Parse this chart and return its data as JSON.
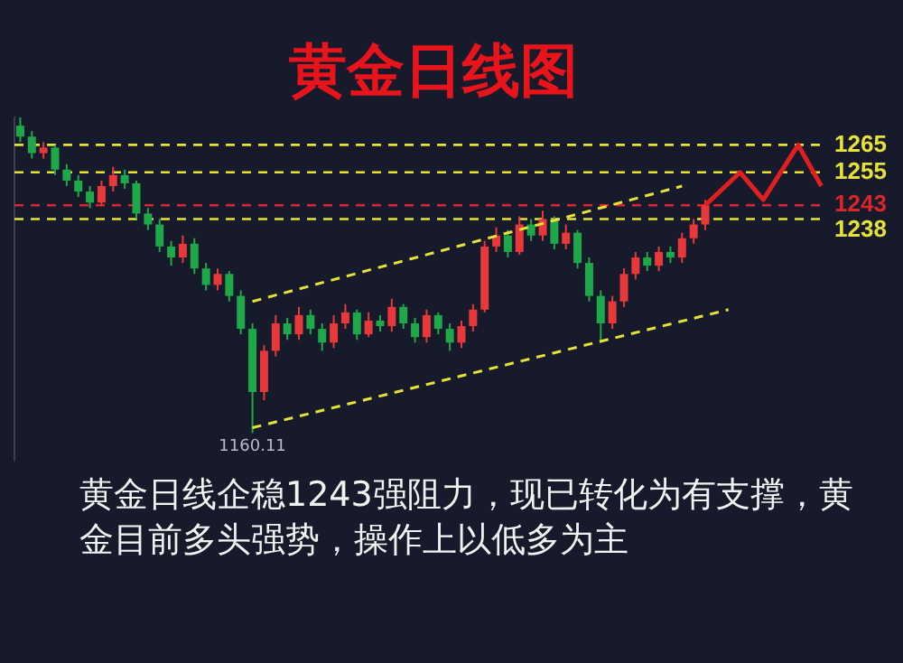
{
  "chart_data": {
    "type": "candlestick",
    "title": "黄金日线图",
    "annotations": [
      "黄金日线企稳1243强阻力，现已转化为有支撑，黄金目前多头强势，操作上以低多为主",
      {
        "text": "1160.11",
        "y": 1160.11
      }
    ],
    "categories": [
      null,
      null,
      null,
      null,
      null,
      null,
      null,
      null,
      null,
      null,
      null,
      null,
      null,
      null,
      null,
      null,
      null,
      null,
      null,
      null,
      null,
      null,
      null,
      null,
      null,
      null,
      null,
      null,
      null,
      null,
      null,
      null,
      null,
      null,
      null,
      null,
      null,
      null,
      null,
      null,
      null,
      null,
      null,
      null,
      null,
      null,
      null,
      null,
      null,
      null,
      null,
      null,
      null,
      null,
      null,
      null,
      null,
      null,
      null,
      null,
      null,
      null,
      null,
      null,
      null,
      null,
      null,
      null,
      null,
      null
    ],
    "ylim": [
      1150,
      1275
    ],
    "tick_labels": false,
    "legend": false,
    "series": [
      {
        "ohlc": [
          [
            1272,
            1275,
            1266,
            1268
          ],
          [
            1268,
            1270,
            1260,
            1262
          ],
          [
            1262,
            1266,
            1260,
            1264
          ],
          [
            1264,
            1265,
            1254,
            1256
          ],
          [
            1256,
            1258,
            1250,
            1252
          ],
          [
            1252,
            1254,
            1246,
            1248
          ],
          [
            1248,
            1250,
            1242,
            1244
          ],
          [
            1244,
            1252,
            1243,
            1250
          ],
          [
            1250,
            1257,
            1248,
            1254
          ],
          [
            1254,
            1256,
            1249,
            1251
          ],
          [
            1251,
            1252,
            1238,
            1240
          ],
          [
            1240,
            1242,
            1234,
            1236
          ],
          [
            1236,
            1238,
            1226,
            1228
          ],
          [
            1228,
            1230,
            1221,
            1224
          ],
          [
            1224,
            1232,
            1222,
            1229
          ],
          [
            1229,
            1231,
            1218,
            1220
          ],
          [
            1220,
            1222,
            1212,
            1214
          ],
          [
            1214,
            1220,
            1212,
            1218
          ],
          [
            1218,
            1219,
            1208,
            1210
          ],
          [
            1210,
            1212,
            1196,
            1198
          ],
          [
            1198,
            1200,
            1160.11,
            1175
          ],
          [
            1175,
            1192,
            1172,
            1190
          ],
          [
            1190,
            1203,
            1188,
            1200
          ],
          [
            1200,
            1202,
            1194,
            1196
          ],
          [
            1196,
            1206,
            1194,
            1203
          ],
          [
            1203,
            1205,
            1196,
            1198
          ],
          [
            1198,
            1200,
            1190,
            1193
          ],
          [
            1193,
            1203,
            1191,
            1200
          ],
          [
            1200,
            1207,
            1198,
            1204
          ],
          [
            1204,
            1205,
            1194,
            1196
          ],
          [
            1196,
            1204,
            1195,
            1201
          ],
          [
            1201,
            1203,
            1197,
            1199
          ],
          [
            1199,
            1209,
            1197,
            1206
          ],
          [
            1206,
            1207,
            1198,
            1200
          ],
          [
            1200,
            1202,
            1193,
            1195
          ],
          [
            1195,
            1205,
            1193,
            1203
          ],
          [
            1203,
            1204,
            1196,
            1198
          ],
          [
            1198,
            1200,
            1190,
            1193
          ],
          [
            1193,
            1201,
            1191,
            1199
          ],
          [
            1199,
            1207,
            1197,
            1205
          ],
          [
            1205,
            1230,
            1204,
            1228
          ],
          [
            1228,
            1235,
            1226,
            1232
          ],
          [
            1232,
            1234,
            1224,
            1226
          ],
          [
            1226,
            1239,
            1225,
            1236
          ],
          [
            1236,
            1238,
            1230,
            1232
          ],
          [
            1232,
            1241,
            1230,
            1238
          ],
          [
            1238,
            1239,
            1227,
            1229
          ],
          [
            1229,
            1236,
            1227,
            1233
          ],
          [
            1233,
            1234,
            1220,
            1222
          ],
          [
            1222,
            1224,
            1208,
            1210
          ],
          [
            1210,
            1212,
            1193,
            1200
          ],
          [
            1200,
            1210,
            1198,
            1208
          ],
          [
            1208,
            1220,
            1206,
            1218
          ],
          [
            1218,
            1226,
            1216,
            1224
          ],
          [
            1224,
            1226,
            1219,
            1221
          ],
          [
            1221,
            1228,
            1219,
            1226
          ],
          [
            1226,
            1228,
            1222,
            1224
          ],
          [
            1224,
            1233,
            1222,
            1231
          ],
          [
            1231,
            1238,
            1229,
            1236
          ],
          [
            1236,
            1245,
            1234,
            1243
          ],
          null,
          null,
          null,
          null,
          null,
          null,
          null,
          null,
          null,
          null
        ],
        "colors": [
          "#1fa84a",
          "#1fa84a",
          "#e8393a",
          "#1fa84a",
          "#1fa84a",
          "#1fa84a",
          "#1fa84a",
          "#e8393a",
          "#e8393a",
          "#1fa84a",
          "#1fa84a",
          "#1fa84a",
          "#1fa84a",
          "#1fa84a",
          "#e8393a",
          "#1fa84a",
          "#1fa84a",
          "#e8393a",
          "#1fa84a",
          "#1fa84a",
          "#1fa84a",
          "#e8393a",
          "#e8393a",
          "#1fa84a",
          "#e8393a",
          "#1fa84a",
          "#1fa84a",
          "#e8393a",
          "#e8393a",
          "#1fa84a",
          "#e8393a",
          "#1fa84a",
          "#e8393a",
          "#1fa84a",
          "#1fa84a",
          "#e8393a",
          "#1fa84a",
          "#1fa84a",
          "#e8393a",
          "#e8393a",
          "#e8393a",
          "#e8393a",
          "#1fa84a",
          "#e8393a",
          "#1fa84a",
          "#e8393a",
          "#1fa84a",
          "#e8393a",
          "#1fa84a",
          "#1fa84a",
          "#1fa84a",
          "#e8393a",
          "#e8393a",
          "#e8393a",
          "#1fa84a",
          "#e8393a",
          "#1fa84a",
          "#e8393a",
          "#e8393a",
          "#e8393a",
          null,
          null,
          null,
          null,
          null,
          null,
          null,
          null,
          null,
          null
        ]
      },
      {
        "type": "line",
        "color": "#e6e23a",
        "line_style": "dashed",
        "values": [
          null,
          null,
          null,
          null,
          null,
          null,
          null,
          null,
          null,
          null,
          null,
          null,
          null,
          null,
          null,
          null,
          null,
          null,
          null,
          null,
          1208,
          null,
          null,
          null,
          null,
          null,
          null,
          null,
          null,
          null,
          null,
          null,
          null,
          null,
          null,
          null,
          null,
          null,
          null,
          null,
          null,
          null,
          null,
          null,
          null,
          null,
          null,
          null,
          null,
          null,
          null,
          null,
          null,
          null,
          null,
          null,
          null,
          1250,
          null,
          null,
          null,
          null,
          null,
          null,
          null,
          null,
          null,
          null,
          null,
          null
        ]
      },
      {
        "type": "line",
        "color": "#e6e23a",
        "line_style": "dashed",
        "values": [
          null,
          null,
          null,
          null,
          null,
          null,
          null,
          null,
          null,
          null,
          null,
          null,
          null,
          null,
          null,
          null,
          null,
          null,
          null,
          null,
          1162,
          null,
          null,
          null,
          null,
          null,
          null,
          null,
          null,
          null,
          null,
          null,
          null,
          null,
          null,
          null,
          null,
          null,
          null,
          null,
          null,
          null,
          null,
          null,
          null,
          null,
          null,
          null,
          null,
          null,
          null,
          null,
          null,
          null,
          null,
          null,
          null,
          null,
          null,
          null,
          null,
          1205,
          null,
          null,
          null,
          null,
          null,
          null,
          null,
          null
        ]
      },
      {
        "type": "line",
        "color": "#e02020",
        "line_style": "solid",
        "values": [
          null,
          null,
          null,
          null,
          null,
          null,
          null,
          null,
          null,
          null,
          null,
          null,
          null,
          null,
          null,
          null,
          null,
          null,
          null,
          null,
          null,
          null,
          null,
          null,
          null,
          null,
          null,
          null,
          null,
          null,
          null,
          null,
          null,
          null,
          null,
          null,
          null,
          null,
          null,
          null,
          null,
          null,
          null,
          null,
          null,
          null,
          null,
          null,
          null,
          null,
          null,
          null,
          null,
          null,
          null,
          null,
          null,
          null,
          null,
          1243,
          null,
          null,
          1255,
          null,
          1245,
          null,
          null,
          1265,
          null,
          1250
        ]
      }
    ],
    "ref_lines": [
      {
        "axis": "y",
        "value": 1265,
        "label": "1265",
        "color": "#e6e23a",
        "line_style": "dashed"
      },
      {
        "axis": "y",
        "value": 1255,
        "label": "1255",
        "color": "#e6e23a",
        "line_style": "dashed"
      },
      {
        "axis": "y",
        "value": 1243,
        "label": "1243",
        "color": "#d8262a",
        "line_style": "dashed"
      },
      {
        "axis": "y",
        "value": 1238,
        "label": "1238",
        "color": "#e6e23a",
        "line_style": "dashed"
      }
    ]
  }
}
